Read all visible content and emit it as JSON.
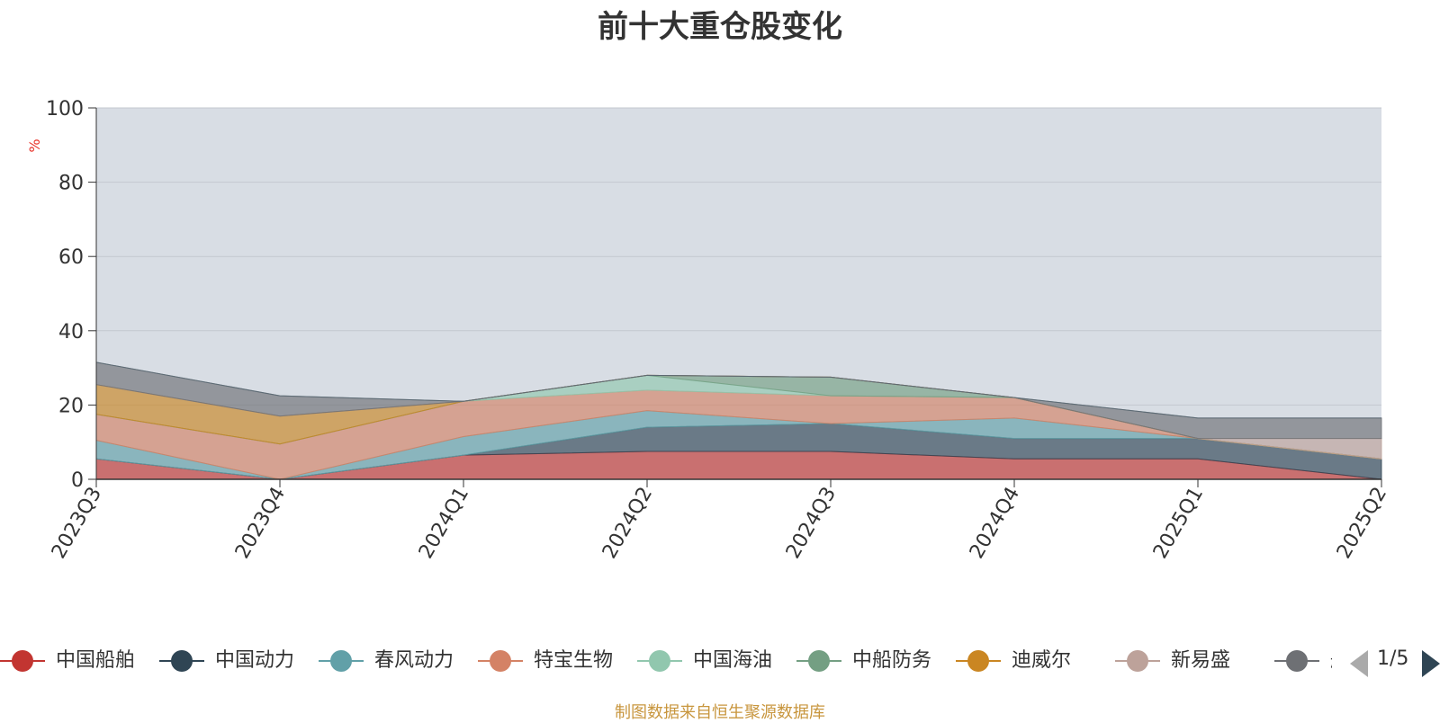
{
  "chart_data": {
    "type": "area",
    "stacked": true,
    "title": "前十大重仓股变化",
    "ylabel": "%",
    "ylim": [
      0,
      100
    ],
    "yticks": [
      0,
      20,
      40,
      60,
      80,
      100
    ],
    "grid": true,
    "legend_position": "bottom",
    "categories": [
      "2023Q3",
      "2023Q4",
      "2024Q1",
      "2024Q2",
      "2024Q3",
      "2024Q4",
      "2025Q1",
      "2025Q2"
    ],
    "series": [
      {
        "name": "中国船舶",
        "color": "#c23531",
        "values": [
          5.5,
          0,
          6.5,
          7.5,
          7.5,
          5.5,
          5.5,
          0
        ]
      },
      {
        "name": "中国动力",
        "color": "#2f4554",
        "values": [
          0,
          0,
          0,
          6.5,
          7.5,
          5.5,
          5.5,
          5.5
        ]
      },
      {
        "name": "春风动力",
        "color": "#61a0a8",
        "values": [
          5,
          0,
          5,
          4.5,
          0,
          5.5,
          0,
          0
        ]
      },
      {
        "name": "特宝生物",
        "color": "#d48265",
        "values": [
          7,
          9.5,
          9.5,
          5.5,
          7.5,
          5.5,
          0,
          0
        ]
      },
      {
        "name": "中国海油",
        "color": "#91c7ae",
        "values": [
          0,
          0,
          0,
          4,
          0,
          0,
          0,
          0
        ]
      },
      {
        "name": "中船防务",
        "color": "#749f83",
        "values": [
          0,
          0,
          0,
          0,
          5,
          0,
          0,
          0
        ]
      },
      {
        "name": "迪威尔",
        "color": "#ca8622",
        "values": [
          8,
          7.5,
          0,
          0,
          0,
          0,
          0,
          0
        ]
      },
      {
        "name": "新易盛",
        "color": "#bda29a",
        "values": [
          0,
          0,
          0,
          0,
          0,
          0,
          0,
          5.5
        ]
      },
      {
        "name": "航宇科技",
        "color": "#6e7074",
        "values": [
          6,
          5.5,
          0,
          0,
          0,
          0,
          5.5,
          5.5
        ]
      },
      {
        "name": "",
        "color": "#546570",
        "values": [
          0,
          0,
          0,
          0,
          0,
          0,
          0,
          0
        ]
      }
    ],
    "legend_page": "1/5"
  },
  "source_note": "制图数据来自恒生聚源数据库"
}
